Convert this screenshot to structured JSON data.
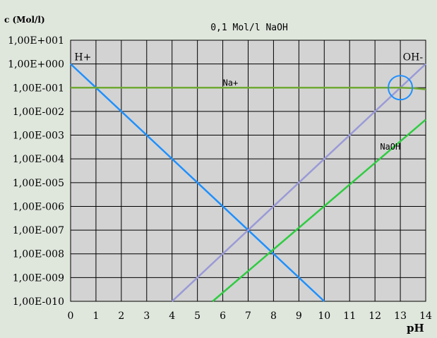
{
  "chart_data": {
    "type": "line",
    "title": "0,1 Mol/l NaOH",
    "ylabel": "c (Mol/l)",
    "xlabel": "pH",
    "yscale": "log",
    "xlim": [
      0,
      14
    ],
    "ylim": [
      1e-10,
      10
    ],
    "grid": true,
    "x_ticks": [
      "0",
      "1",
      "2",
      "3",
      "4",
      "5",
      "6",
      "7",
      "8",
      "9",
      "10",
      "11",
      "12",
      "13",
      "14"
    ],
    "y_ticks": [
      "1,00E+001",
      "1,00E+000",
      "1,00E-001",
      "1,00E-002",
      "1,00E-003",
      "1,00E-004",
      "1,00E-005",
      "1,00E-006",
      "1,00E-007",
      "1,00E-008",
      "1,00E-009",
      "1,00E-010"
    ],
    "series": [
      {
        "name": "H+",
        "color": "#1e90ff",
        "x": [
          0,
          10
        ],
        "y": [
          1,
          1e-10
        ]
      },
      {
        "name": "OH-",
        "color": "#9a9ad8",
        "x": [
          4,
          14
        ],
        "y": [
          1e-10,
          1
        ]
      },
      {
        "name": "Na+",
        "color": "#6fa832",
        "x": [
          0,
          12.5,
          13,
          13.5,
          14
        ],
        "y": [
          0.1,
          0.1,
          0.0995,
          0.0955,
          0.085
        ]
      },
      {
        "name": "NaOH",
        "color": "#2ecc40",
        "x": [
          5.6,
          14
        ],
        "y": [
          1e-10,
          0.0045
        ]
      }
    ],
    "annotations": [
      {
        "text": "H+",
        "x": 0.15,
        "y": 2.0
      },
      {
        "text": "OH-",
        "x": 13.1,
        "y": 2.0
      },
      {
        "text": "Na+",
        "x": 6.0,
        "y": 0.17
      },
      {
        "text": "NaOH",
        "x": 12.2,
        "y": 0.00035
      }
    ],
    "highlight_circle": {
      "x": 13,
      "y": 0.1,
      "color": "#1e90ff"
    },
    "colors": {
      "plot_background": "#d3d3d3",
      "page_background": "#dfe6dc",
      "grid": "#000000"
    }
  }
}
